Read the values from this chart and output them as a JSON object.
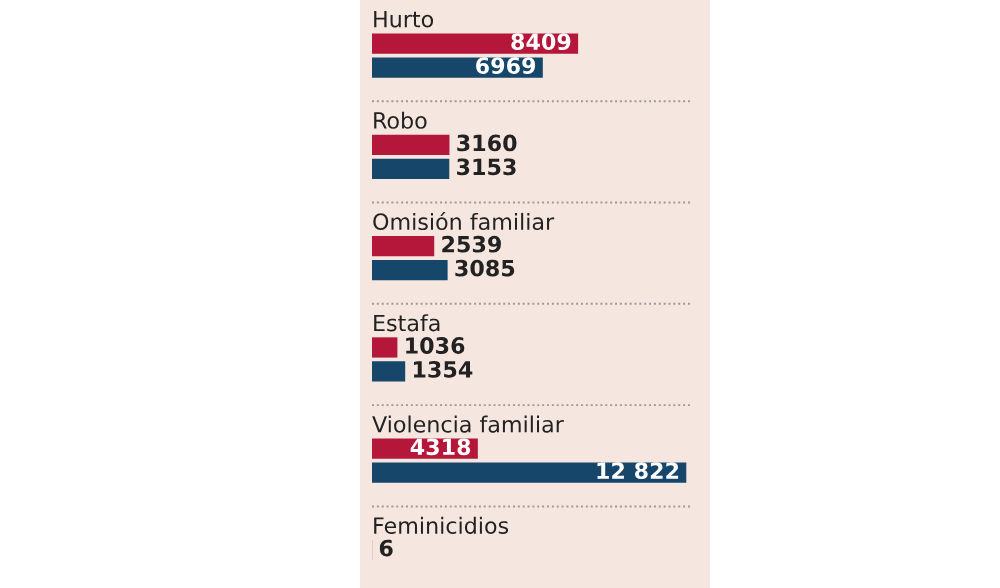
{
  "chart_data": {
    "type": "bar",
    "orientation": "horizontal",
    "categories": [
      "Hurto",
      "Robo",
      "Omisión familiar",
      "Estafa",
      "Violencia familiar",
      "Feminicidios"
    ],
    "series": [
      {
        "color": "#b5173a",
        "values": [
          8409,
          3160,
          2539,
          1036,
          4318,
          6
        ],
        "value_labels": [
          "8409",
          "3160",
          "2539",
          "1036",
          "4318",
          "6"
        ]
      },
      {
        "color": "#17466b",
        "values": [
          6969,
          3153,
          3085,
          1354,
          12822,
          null
        ],
        "value_labels": [
          "6969",
          "3153",
          "3085",
          "1354",
          "12 822",
          null
        ]
      }
    ]
  }
}
